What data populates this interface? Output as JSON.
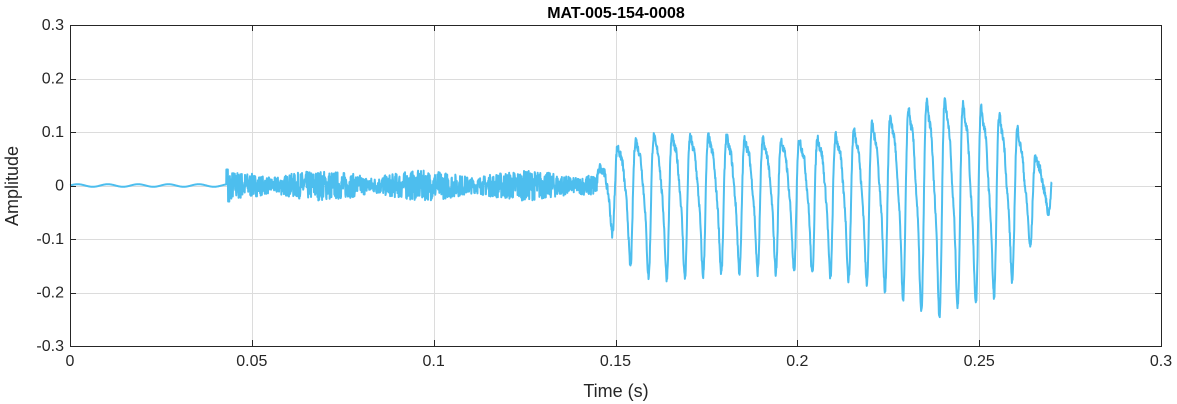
{
  "chart_data": {
    "type": "line",
    "title": "MAT-005-154-0008",
    "xlabel": "Time (s)",
    "ylabel": "Amplitude",
    "xlim": [
      0,
      0.3
    ],
    "ylim": [
      -0.3,
      0.3
    ],
    "x_ticks": [
      0,
      0.05,
      0.1,
      0.15,
      0.2,
      0.25,
      0.3
    ],
    "x_tick_labels": [
      "0",
      "0.05",
      "0.1",
      "0.15",
      "0.2",
      "0.25",
      "0.3"
    ],
    "y_ticks": [
      -0.3,
      -0.2,
      -0.1,
      0,
      0.1,
      0.2,
      0.3
    ],
    "y_tick_labels": [
      "-0.3",
      "-0.2",
      "-0.1",
      "0",
      "0.1",
      "0.2",
      "0.3"
    ],
    "grid": true,
    "series": [
      {
        "color": "#4DBEEE",
        "segments": [
          {
            "t_start": 0.0,
            "t_end": 0.043,
            "kind": "quiet",
            "amp_min": -0.003,
            "amp_max": 0.003
          },
          {
            "t_start": 0.043,
            "t_end": 0.145,
            "kind": "noise",
            "amp_min": -0.03,
            "amp_max": 0.04
          },
          {
            "t_start": 0.145,
            "t_end": 0.27,
            "kind": "voiced",
            "freq_hz": 200,
            "amp_min": -0.24,
            "amp_max": 0.23
          }
        ],
        "envelope": {
          "t": [
            0.145,
            0.15,
            0.155,
            0.16,
            0.17,
            0.18,
            0.19,
            0.2,
            0.21,
            0.22,
            0.23,
            0.235,
            0.24,
            0.245,
            0.25,
            0.255,
            0.26,
            0.265,
            0.27
          ],
          "upper": [
            0.04,
            0.1,
            0.12,
            0.13,
            0.13,
            0.13,
            0.12,
            0.12,
            0.13,
            0.16,
            0.2,
            0.22,
            0.23,
            0.22,
            0.21,
            0.19,
            0.16,
            0.08,
            0.04
          ],
          "lower": [
            -0.04,
            -0.1,
            -0.16,
            -0.17,
            -0.17,
            -0.16,
            -0.16,
            -0.16,
            -0.17,
            -0.18,
            -0.21,
            -0.24,
            -0.24,
            -0.22,
            -0.22,
            -0.2,
            -0.17,
            -0.1,
            -0.04
          ]
        }
      }
    ]
  }
}
